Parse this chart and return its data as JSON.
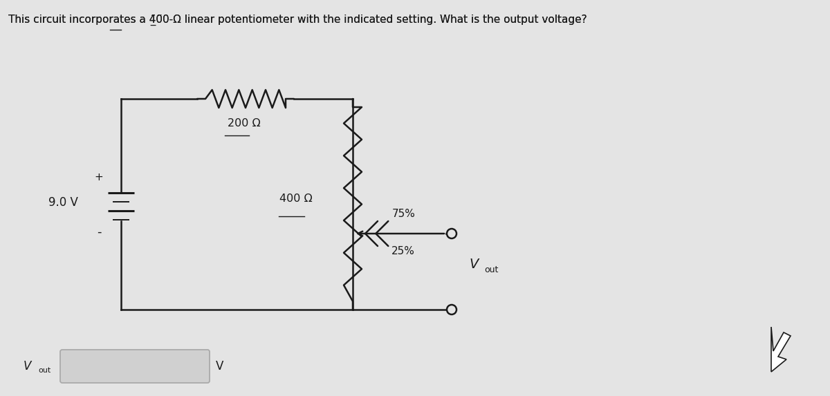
{
  "title_parts": [
    {
      "text": "This circuit incorporates a 4",
      "underline": false
    },
    {
      "text": "00",
      "underline": true
    },
    {
      "text": "-Ω linear potentiometer with the indicated setting. What is the output voltage?",
      "underline": false
    }
  ],
  "bg_color": "#e4e4e4",
  "line_color": "#1a1a1a",
  "voltage_source": "9.0 V",
  "r1_label_pre": "2",
  "r1_label_under": "00",
  "r1_label_post": " Ω",
  "r2_label_pre": "4",
  "r2_label_under": "00",
  "r2_label_post": " Ω",
  "pct_top": "75%",
  "pct_bot": "25%",
  "plus_sign": "+",
  "minus_sign": "-"
}
